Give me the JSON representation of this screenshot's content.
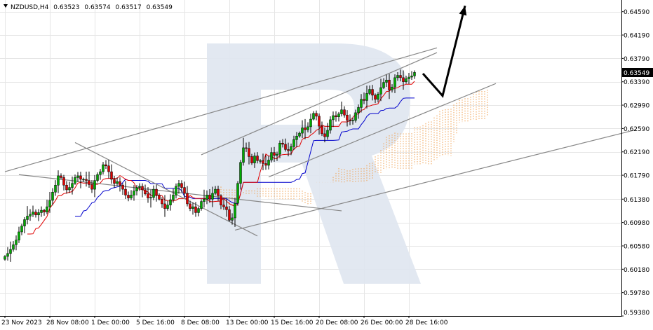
{
  "header": {
    "symbol": "NZDUSD,H4",
    "open": "0.63523",
    "high": "0.63574",
    "low": "0.63517",
    "close": "0.63549"
  },
  "colors": {
    "bull": "#00aa00",
    "bear": "#dd0000",
    "tenkan": "#e00000",
    "kijun": "#0000cc",
    "cloud": "#f0a050",
    "trendline": "#888888",
    "arrow": "#000000",
    "grid": "#e6e6e6",
    "watermark": "#dfe5f0"
  },
  "chart_data": {
    "type": "candlestick",
    "title": "NZDUSD,H4",
    "ylim": [
      0.5938,
      0.6479
    ],
    "y_ticks": [
      "0.64590",
      "0.64190",
      "0.63790",
      "0.63390",
      "0.62990",
      "0.62590",
      "0.62190",
      "0.61790",
      "0.61380",
      "0.60980",
      "0.60580",
      "0.60180",
      "0.59780",
      "0.59380"
    ],
    "current_price": "0.63549",
    "x_ticks": [
      "23 Nov 2023",
      "28 Nov 08:00",
      "1 Dec 00:00",
      "5 Dec 16:00",
      "8 Dec 08:00",
      "13 Dec 00:00",
      "15 Dec 16:00",
      "20 Dec 08:00",
      "26 Dec 00:00",
      "28 Dec 16:00"
    ],
    "x_tick_bars": [
      0,
      16,
      32,
      48,
      64,
      80,
      96,
      112,
      128,
      144
    ],
    "grid": true,
    "closes": [
      0.604,
      0.6045,
      0.6052,
      0.606,
      0.6068,
      0.6082,
      0.6092,
      0.6103,
      0.6109,
      0.6112,
      0.6116,
      0.6111,
      0.6115,
      0.6119,
      0.6116,
      0.6125,
      0.6136,
      0.615,
      0.6162,
      0.6178,
      0.6175,
      0.6162,
      0.6154,
      0.6158,
      0.6165,
      0.6175,
      0.6178,
      0.6172,
      0.6172,
      0.617,
      0.6163,
      0.6155,
      0.617,
      0.618,
      0.6185,
      0.6197,
      0.6195,
      0.6185,
      0.6172,
      0.6165,
      0.6168,
      0.6162,
      0.6155,
      0.6145,
      0.614,
      0.6145,
      0.6152,
      0.6158,
      0.616,
      0.6154,
      0.6147,
      0.614,
      0.6141,
      0.6155,
      0.6145,
      0.6138,
      0.613,
      0.6122,
      0.6128,
      0.6137,
      0.6145,
      0.616,
      0.6165,
      0.6158,
      0.6148,
      0.613,
      0.6122,
      0.6125,
      0.6115,
      0.6122,
      0.6134,
      0.6138,
      0.6145,
      0.6138,
      0.6148,
      0.6155,
      0.6144,
      0.6128,
      0.6125,
      0.612,
      0.6102,
      0.6106,
      0.6131,
      0.6165,
      0.6201,
      0.6226,
      0.6225,
      0.6211,
      0.62,
      0.6212,
      0.6204,
      0.6204,
      0.6199,
      0.6196,
      0.6205,
      0.6218,
      0.6213,
      0.6215,
      0.6234,
      0.6232,
      0.6223,
      0.6221,
      0.6228,
      0.624,
      0.6246,
      0.6251,
      0.626,
      0.6257,
      0.6262,
      0.6275,
      0.6285,
      0.628,
      0.6263,
      0.625,
      0.6245,
      0.6256,
      0.6274,
      0.6281,
      0.6279,
      0.6284,
      0.6291,
      0.6282,
      0.6273,
      0.6272,
      0.6273,
      0.6286,
      0.6295,
      0.6309,
      0.6307,
      0.6319,
      0.6326,
      0.6316,
      0.6309,
      0.6318,
      0.6329,
      0.6338,
      0.6342,
      0.6325,
      0.633,
      0.6346,
      0.635,
      0.6346,
      0.6339,
      0.6344,
      0.6347,
      0.6349,
      0.6355
    ]
  },
  "annotations": {
    "channels": [
      {
        "from": [
          0,
          0.6185
        ],
        "to": [
          154,
          0.6397
        ]
      },
      {
        "from": [
          82,
          0.6085
        ],
        "to": [
          225,
          0.6257
        ]
      },
      {
        "from": [
          25,
          0.6235
        ],
        "to": [
          90,
          0.6075
        ]
      },
      {
        "from": [
          5,
          0.618
        ],
        "to": [
          120,
          0.6118
        ]
      },
      {
        "from": [
          70,
          0.6214
        ],
        "to": [
          154,
          0.6389
        ]
      },
      {
        "from": [
          94,
          0.6176
        ],
        "to": [
          175,
          0.6336
        ]
      }
    ],
    "forecast_path": [
      [
        149,
        0.6353
      ],
      [
        156,
        0.6315
      ],
      [
        164,
        0.6469
      ]
    ]
  },
  "watermark": "R"
}
